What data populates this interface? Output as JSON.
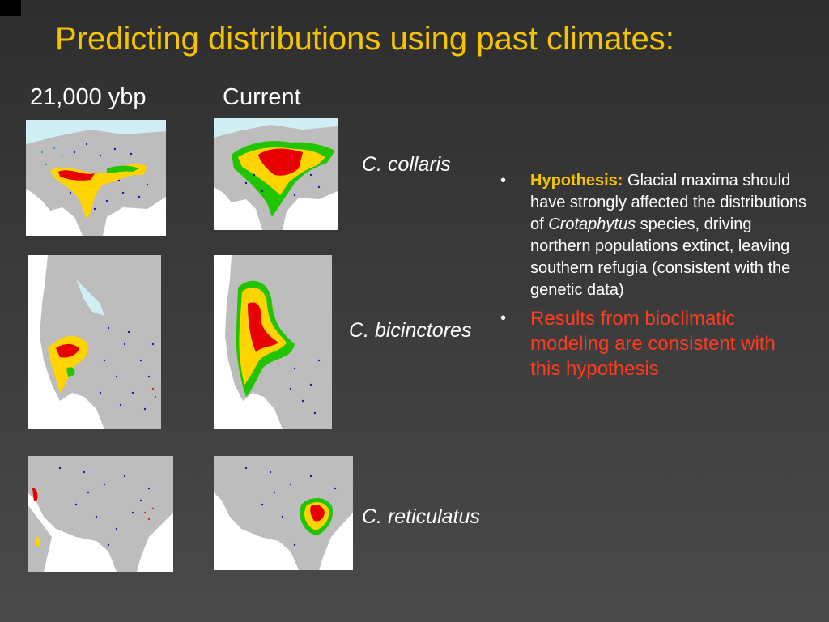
{
  "slide": {
    "title": "Predicting distributions using past climates:",
    "columns": {
      "past": "21,000 ybp",
      "current": "Current"
    }
  },
  "species": [
    {
      "label": "C. collaris"
    },
    {
      "label": "C. bicinctores"
    },
    {
      "label": "C. reticulatus"
    }
  ],
  "bullets": {
    "hypothesis_lead": "Hypothesis:",
    "hypothesis_text_1": " Glacial maxima should have strongly affected the distributions of ",
    "hypothesis_genus": "Crotaphytus",
    "hypothesis_text_2": " species, driving northern populations extinct, leaving southern refugia (consistent with the genetic data)",
    "result": "Results from bioclimatic modeling are consistent with this hypothesis"
  },
  "colors": {
    "title": "#f5c400",
    "result_text": "#ff3b1f",
    "map_land": "#bdbdbd",
    "suitability_high": "#e60000",
    "suitability_mid": "#ffd400",
    "suitability_low": "#22c400",
    "locality_dots": "#1a1aa0"
  }
}
